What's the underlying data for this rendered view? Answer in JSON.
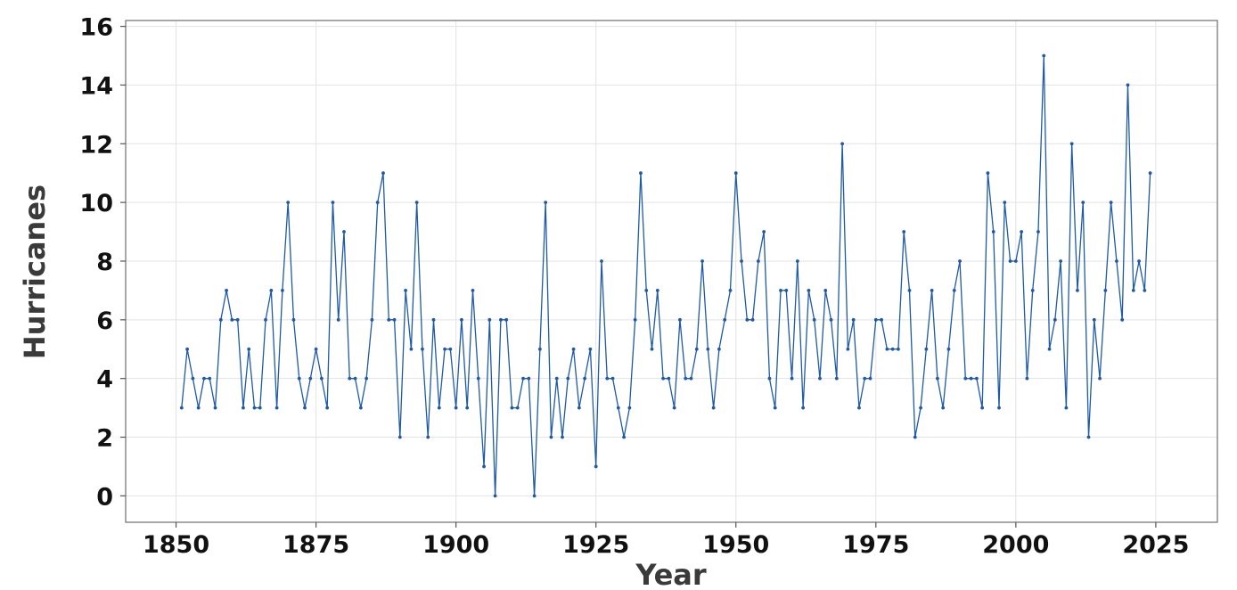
{
  "colors": {
    "series": "#1f5aa6",
    "grid": "#e3e3e3",
    "frame": "#6e6e6e"
  },
  "chart_data": {
    "type": "line",
    "title": "",
    "xlabel": "Year",
    "ylabel": "Hurricanes",
    "xlim": [
      1841,
      2036
    ],
    "ylim": [
      -0.9,
      16.2
    ],
    "xticks": [
      1850,
      1875,
      1900,
      1925,
      1950,
      1975,
      2000,
      2025
    ],
    "yticks": [
      0,
      2,
      4,
      6,
      8,
      10,
      12,
      14,
      16
    ],
    "grid": true,
    "legend": "none",
    "x_start_year": 1851,
    "series": [
      {
        "values": [
          3,
          5,
          4,
          3,
          4,
          4,
          3,
          6,
          7,
          6,
          6,
          3,
          5,
          3,
          3,
          6,
          7,
          3,
          7,
          10,
          6,
          4,
          3,
          4,
          5,
          4,
          3,
          10,
          6,
          9,
          4,
          4,
          3,
          4,
          6,
          10,
          11,
          6,
          6,
          2,
          7,
          5,
          10,
          5,
          2,
          6,
          3,
          5,
          5,
          3,
          6,
          3,
          7,
          4,
          1,
          6,
          0,
          6,
          6,
          3,
          3,
          4,
          4,
          0,
          5,
          10,
          2,
          4,
          2,
          4,
          5,
          3,
          4,
          5,
          1,
          8,
          4,
          4,
          3,
          2,
          3,
          6,
          11,
          7,
          5,
          7,
          4,
          4,
          3,
          6,
          4,
          4,
          5,
          8,
          5,
          3,
          5,
          6,
          7,
          11,
          8,
          6,
          6,
          8,
          9,
          4,
          3,
          7,
          7,
          4,
          8,
          3,
          7,
          6,
          4,
          7,
          6,
          4,
          12,
          5,
          6,
          3,
          4,
          4,
          6,
          6,
          5,
          5,
          5,
          9,
          7,
          2,
          3,
          5,
          7,
          4,
          3,
          5,
          7,
          8,
          4,
          4,
          4,
          3,
          11,
          9,
          3,
          10,
          8,
          8,
          9,
          4,
          7,
          9,
          15,
          5,
          6,
          8,
          3,
          12,
          7,
          10,
          2,
          6,
          4,
          7,
          10,
          8,
          6,
          14,
          7,
          8,
          7,
          11
        ]
      }
    ]
  }
}
